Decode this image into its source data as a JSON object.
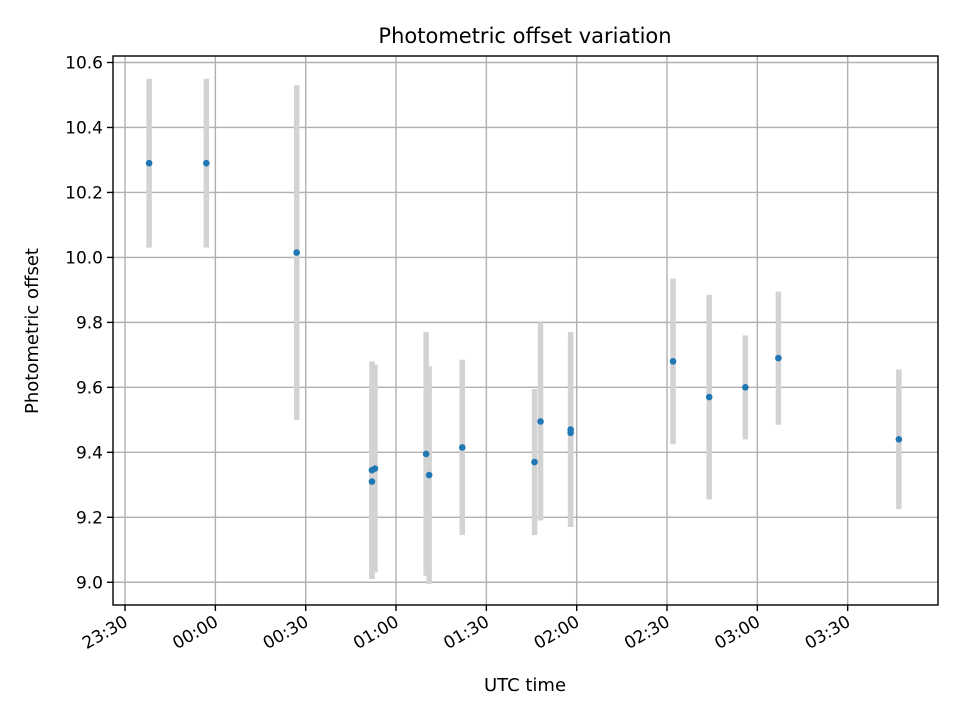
{
  "chart_data": {
    "type": "scatter",
    "title": "Photometric offset variation",
    "xlabel": "UTC time",
    "ylabel": "Photometric offset",
    "grid": true,
    "xlim": [
      "23:26",
      "04:00"
    ],
    "ylim": [
      8.93,
      10.62
    ],
    "x_ticks": [
      {
        "value": "23:30",
        "label": "23:30"
      },
      {
        "value": "00:00",
        "label": "00:00"
      },
      {
        "value": "00:30",
        "label": "00:30"
      },
      {
        "value": "01:00",
        "label": "01:00"
      },
      {
        "value": "01:30",
        "label": "01:30"
      },
      {
        "value": "02:00",
        "label": "02:00"
      },
      {
        "value": "02:30",
        "label": "02:30"
      },
      {
        "value": "03:00",
        "label": "03:00"
      },
      {
        "value": "03:30",
        "label": "03:30"
      }
    ],
    "y_ticks": [
      {
        "value": 9.0,
        "label": "9.0"
      },
      {
        "value": 9.2,
        "label": "9.2"
      },
      {
        "value": 9.4,
        "label": "9.4"
      },
      {
        "value": 9.6,
        "label": "9.6"
      },
      {
        "value": 9.8,
        "label": "9.8"
      },
      {
        "value": 10.0,
        "label": "10.0"
      },
      {
        "value": 10.2,
        "label": "10.2"
      },
      {
        "value": 10.4,
        "label": "10.4"
      },
      {
        "value": 10.6,
        "label": "10.6"
      }
    ],
    "marker_color": "#1f77b4",
    "error_bar_color": "#d3d3d3",
    "points": [
      {
        "x": "23:38",
        "y": 10.29,
        "err": 0.26
      },
      {
        "x": "23:57",
        "y": 10.29,
        "err": 0.26
      },
      {
        "x": "00:27",
        "y": 10.015,
        "err": 0.515
      },
      {
        "x": "00:52",
        "y": 9.31,
        "err": 0.3
      },
      {
        "x": "00:52",
        "y": 9.345,
        "err": 0.335
      },
      {
        "x": "00:53",
        "y": 9.35,
        "err": 0.32
      },
      {
        "x": "01:10",
        "y": 9.395,
        "err": 0.375
      },
      {
        "x": "01:11",
        "y": 9.33,
        "err": 0.335
      },
      {
        "x": "01:22",
        "y": 9.415,
        "err": 0.27
      },
      {
        "x": "01:46",
        "y": 9.37,
        "err": 0.225
      },
      {
        "x": "01:48",
        "y": 9.495,
        "err": 0.305
      },
      {
        "x": "01:58",
        "y": 9.46,
        "err": 0.29
      },
      {
        "x": "01:58",
        "y": 9.47,
        "err": 0.3
      },
      {
        "x": "02:32",
        "y": 9.68,
        "err": 0.255
      },
      {
        "x": "02:44",
        "y": 9.57,
        "err": 0.315
      },
      {
        "x": "02:56",
        "y": 9.6,
        "err": 0.16
      },
      {
        "x": "03:07",
        "y": 9.69,
        "err": 0.205
      },
      {
        "x": "03:47",
        "y": 9.44,
        "err": 0.215
      }
    ]
  }
}
